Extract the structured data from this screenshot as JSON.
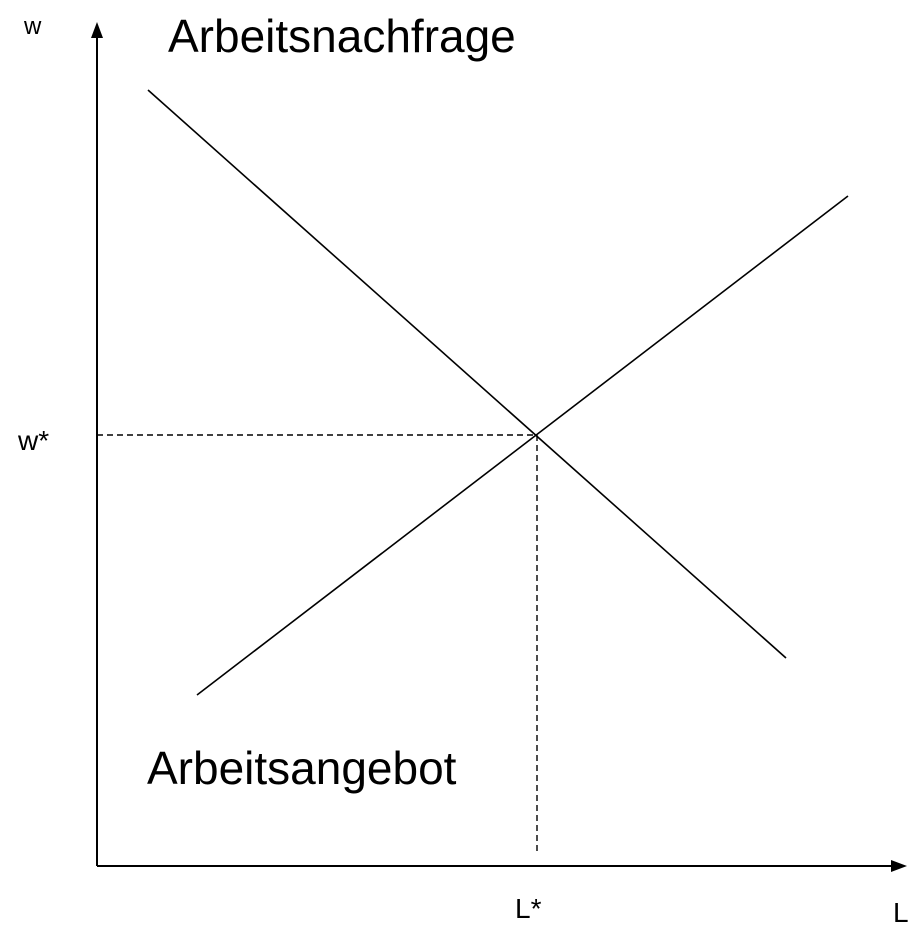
{
  "axes": {
    "y_label": "w",
    "x_label": "L",
    "y_equilibrium": "w*",
    "x_equilibrium": "L*"
  },
  "curves": {
    "demand": "Arbeitsnachfrage",
    "supply": "Arbeitsangebot"
  }
}
